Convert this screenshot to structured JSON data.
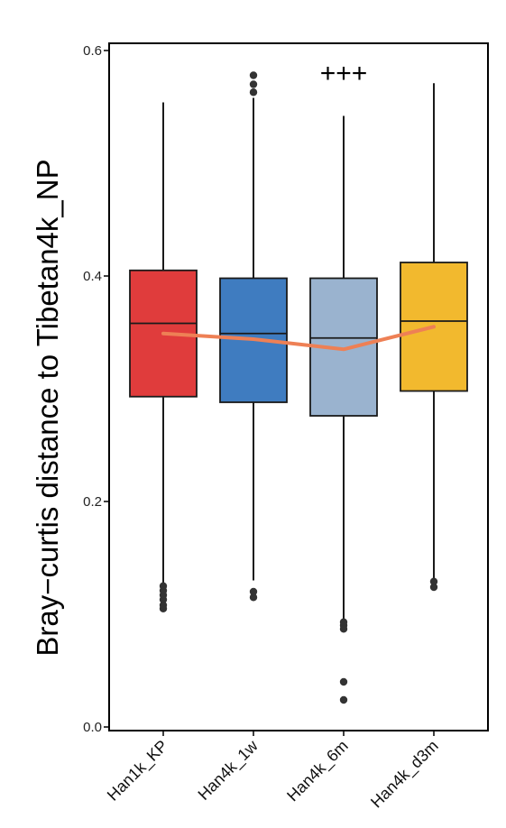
{
  "chart_data": {
    "type": "box",
    "ylabel": "Bray−curtis distance to Tibetan4k_NP",
    "xlabel": "",
    "ylim": [
      0,
      0.6
    ],
    "yticks": [
      "0.0",
      "0.2",
      "0.4",
      "0.6"
    ],
    "yticks_values": [
      0,
      0.2,
      0.4,
      0.6
    ],
    "categories": [
      "Han1k_KP",
      "Han4k_1w",
      "Han4k_6m",
      "Han4k_d3m"
    ],
    "boxes": [
      {
        "whisker_low": 0.125,
        "q1": 0.293,
        "median": 0.358,
        "q3": 0.405,
        "whisker_high": 0.554,
        "color": "#e03c3c",
        "outliers": [
          0.105,
          0.108,
          0.113,
          0.117,
          0.121,
          0.125
        ]
      },
      {
        "whisker_low": 0.13,
        "q1": 0.288,
        "median": 0.349,
        "q3": 0.398,
        "whisker_high": 0.558,
        "color": "#3f7cc0",
        "outliers": [
          0.115,
          0.12,
          0.563,
          0.57,
          0.578
        ]
      },
      {
        "whisker_low": 0.095,
        "q1": 0.276,
        "median": 0.345,
        "q3": 0.398,
        "whisker_high": 0.542,
        "color": "#9ab3cf",
        "outliers": [
          0.087,
          0.09,
          0.093,
          0.04,
          0.024
        ]
      },
      {
        "whisker_low": 0.13,
        "q1": 0.298,
        "median": 0.36,
        "q3": 0.412,
        "whisker_high": 0.571,
        "color": "#f2b92e",
        "outliers": [
          0.124,
          0.129
        ]
      }
    ],
    "trend_line": {
      "values": [
        0.349,
        0.344,
        0.335,
        0.355
      ],
      "color": "#ee8055"
    },
    "annotation": {
      "text": "+++",
      "category_index": 2,
      "y": 0.58
    }
  }
}
